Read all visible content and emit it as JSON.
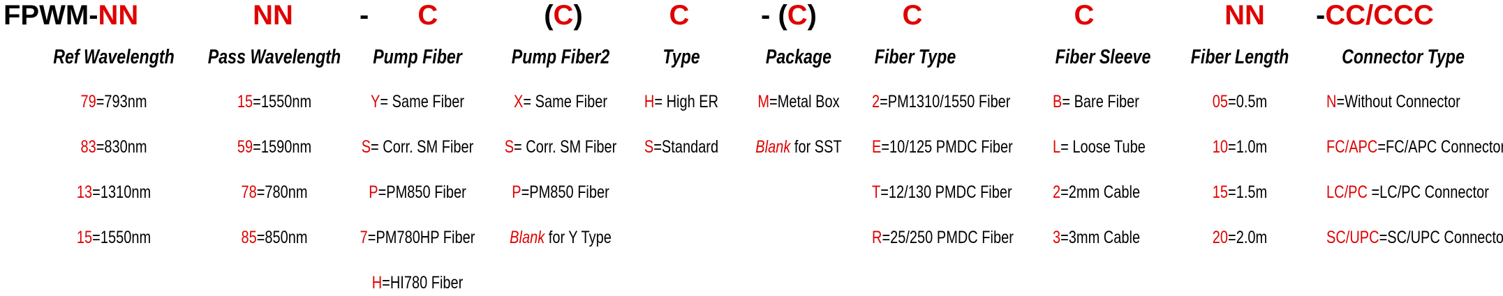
{
  "header": [
    [
      {
        "text": "FPWM-"
      },
      {
        "text": "NN",
        "accent": true
      }
    ],
    [
      {
        "text": "NN",
        "accent": true
      }
    ],
    [
      {
        "text": "-"
      },
      {
        "text": "C",
        "accent": true
      }
    ],
    [
      {
        "text": "("
      },
      {
        "text": "C",
        "accent": true
      },
      {
        "text": ")"
      }
    ],
    [
      {
        "text": "C",
        "accent": true
      }
    ],
    [
      {
        "text": "- ("
      },
      {
        "text": "C",
        "accent": true
      },
      {
        "text": ")"
      }
    ],
    [
      {
        "text": "C",
        "accent": true
      }
    ],
    [
      {
        "text": "C",
        "accent": true
      }
    ],
    [
      {
        "text": "NN",
        "accent": true
      }
    ],
    [
      {
        "text": "-"
      },
      {
        "text": "CC/CCC",
        "accent": true
      }
    ]
  ],
  "columns": [
    {
      "title": "Ref Wavelength",
      "entries": [
        {
          "code": "79",
          "desc": "=793nm"
        },
        {
          "code": "83",
          "desc": "=830nm"
        },
        {
          "code": "13",
          "desc": "=1310nm"
        },
        {
          "code": "15",
          "desc": "=1550nm"
        }
      ]
    },
    {
      "title": "Pass Wavelength",
      "entries": [
        {
          "code": "15",
          "desc": "=1550nm"
        },
        {
          "code": "59",
          "desc": "=1590nm"
        },
        {
          "code": "78",
          "desc": "=780nm"
        },
        {
          "code": "85",
          "desc": "=850nm"
        }
      ]
    },
    {
      "title": "Pump Fiber",
      "entries": [
        {
          "code": "Y",
          "desc": "= Same Fiber"
        },
        {
          "code": "S",
          "desc": "= Corr. SM Fiber"
        },
        {
          "code": "P",
          "desc": "=PM850 Fiber"
        },
        {
          "code": "7",
          "desc": "=PM780HP Fiber"
        },
        {
          "code": "H",
          "desc": "=HI780 Fiber"
        }
      ]
    },
    {
      "title": "Pump Fiber2",
      "entries": [
        {
          "code": "X",
          "desc": "= Same Fiber"
        },
        {
          "code": "S",
          "desc": "= Corr. SM Fiber"
        },
        {
          "code": "P",
          "desc": "=PM850 Fiber"
        },
        {
          "code": "Blank",
          "desc": " for Y Type",
          "italic": true
        }
      ]
    },
    {
      "title": "Type",
      "entries": [
        {
          "code": "H",
          "desc": "= High ER"
        },
        {
          "code": "S",
          "desc": "=Standard"
        }
      ]
    },
    {
      "title": "Package",
      "entries": [
        {
          "code": "M",
          "desc": "=Metal Box"
        },
        {
          "code": "Blank",
          "desc": " for SST",
          "italic": true
        }
      ]
    },
    {
      "title": "Fiber Type",
      "entries": [
        {
          "code": "2",
          "desc": "=PM1310/1550 Fiber"
        },
        {
          "code": "E",
          "desc": "=10/125 PMDC Fiber"
        },
        {
          "code": "T",
          "desc": "=12/130 PMDC Fiber"
        },
        {
          "code": "R",
          "desc": "=25/250 PMDC Fiber"
        }
      ]
    },
    {
      "title": "Fiber Sleeve",
      "entries": [
        {
          "code": "B",
          "desc": "= Bare Fiber"
        },
        {
          "code": "L",
          "desc": "= Loose Tube"
        },
        {
          "code": "2",
          "desc": "=2mm Cable"
        },
        {
          "code": "3",
          "desc": "=3mm Cable"
        }
      ]
    },
    {
      "title": "Fiber Length",
      "entries": [
        {
          "code": "05",
          "desc": "=0.5m"
        },
        {
          "code": "10",
          "desc": "=1.0m"
        },
        {
          "code": "15",
          "desc": "=1.5m"
        },
        {
          "code": "20",
          "desc": "=2.0m"
        }
      ]
    },
    {
      "title": "Connector Type",
      "entries": [
        {
          "code": "N",
          "desc": "=Without Connector"
        },
        {
          "code": "FC/APC",
          "desc": "=FC/APC Connector"
        },
        {
          "code": "LC/PC",
          "desc": " =LC/PC Connector"
        },
        {
          "code": "SC/UPC",
          "desc": "=SC/UPC Connector"
        }
      ]
    }
  ]
}
